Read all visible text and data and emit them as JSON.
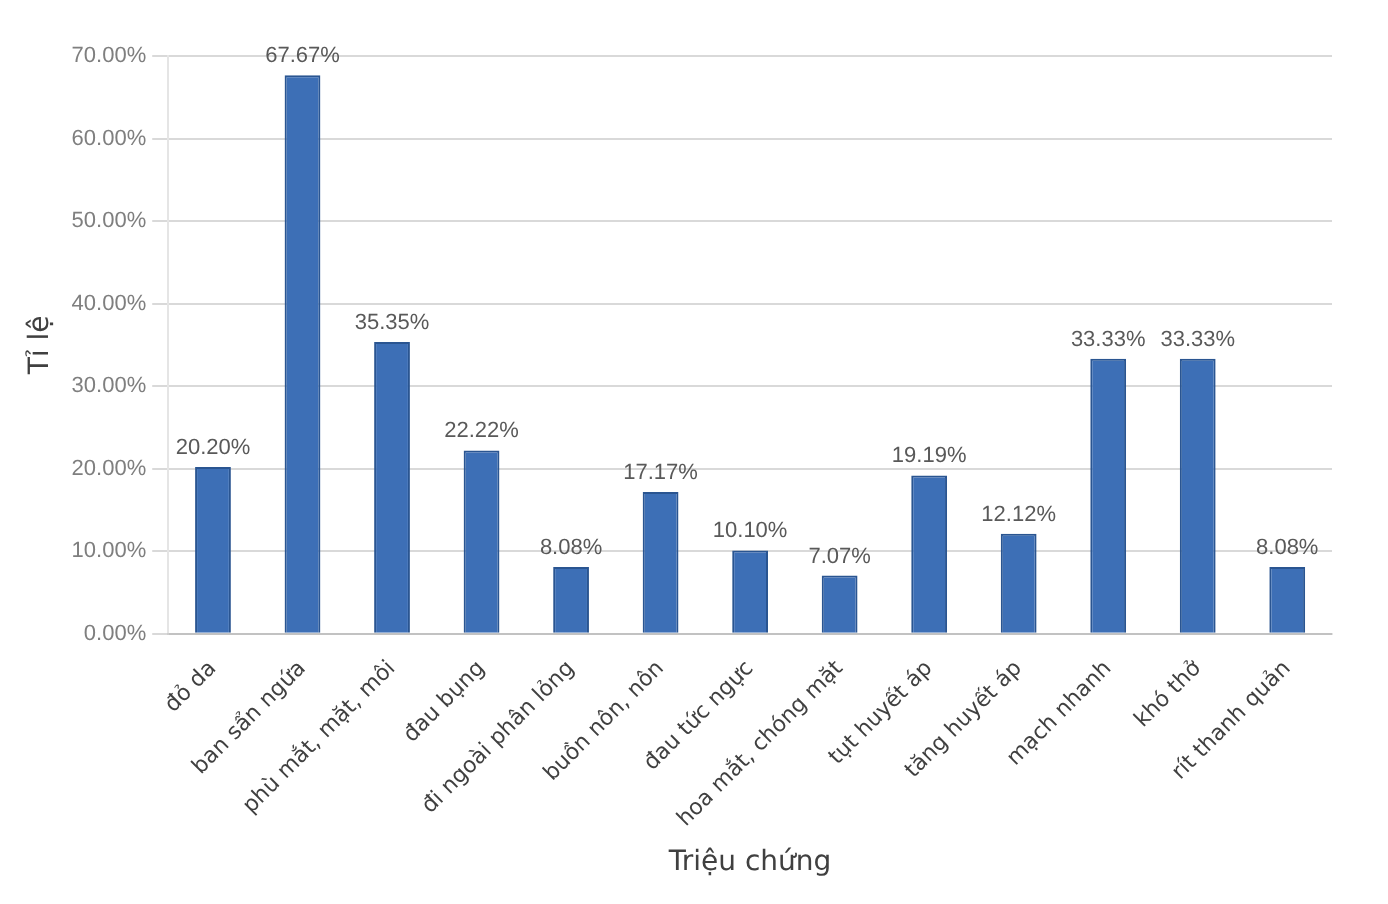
{
  "chart_data": {
    "type": "bar",
    "xlabel": "Triệu chứng",
    "ylabel": "Tỉ lệ",
    "categories": [
      "đỏ da",
      "ban sẩn ngứa",
      "phù mắt, mặt, môi",
      "đau bụng",
      "đi ngoài phân lỏng",
      "buồn nôn, nôn",
      "đau tức ngực",
      "hoa mắt, chóng mặt",
      "tụt huyết áp",
      "tăng huyết áp",
      "mạch nhanh",
      "khó thở",
      "rít thanh quản"
    ],
    "values": [
      20.2,
      67.67,
      35.35,
      22.22,
      8.08,
      17.17,
      10.1,
      7.07,
      19.19,
      12.12,
      33.33,
      33.33,
      8.08
    ],
    "value_labels": [
      "20.20%",
      "67.67%",
      "35.35%",
      "22.22%",
      "8.08%",
      "17.17%",
      "10.10%",
      "7.07%",
      "19.19%",
      "12.12%",
      "33.33%",
      "33.33%",
      "8.08%"
    ],
    "color": "#3d6fb6",
    "ylim": [
      0,
      70
    ],
    "yticks": [
      {
        "value": 0,
        "label": "0.00%"
      },
      {
        "value": 10,
        "label": "10.00%"
      },
      {
        "value": 20,
        "label": "20.00%"
      },
      {
        "value": 30,
        "label": "30.00%"
      },
      {
        "value": 40,
        "label": "40.00%"
      },
      {
        "value": 50,
        "label": "50.00%"
      },
      {
        "value": 60,
        "label": "60.00%"
      },
      {
        "value": 70,
        "label": "70.00%"
      }
    ],
    "grid": "y",
    "legend": false
  }
}
